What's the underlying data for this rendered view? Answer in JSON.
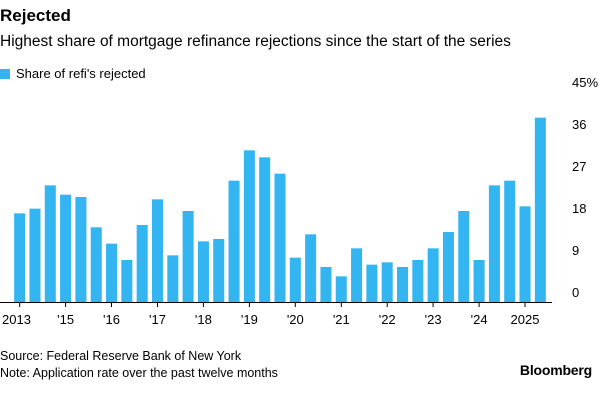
{
  "header": {
    "title": "Rejected",
    "subtitle": "Highest share of mortgage refinance rejections since the start of the series"
  },
  "footer": {
    "source": "Source: Federal Reserve Bank of New York",
    "note": "Note: Application rate over the past twelve months",
    "brand": "Bloomberg"
  },
  "colors": {
    "bar": "#33b5f2",
    "axis": "#000000",
    "text": "#000000"
  },
  "chart_data": {
    "type": "bar",
    "title": "Rejected",
    "subtitle": "Highest share of mortgage refinance rejections since the start of the series",
    "series": [
      {
        "name": "Share of refi's rejected",
        "values": [
          19,
          20,
          25,
          23,
          22.5,
          16,
          12.5,
          9,
          16.5,
          22,
          10,
          19.5,
          13,
          13.5,
          26,
          32.5,
          31,
          27.5,
          9.5,
          14.5,
          7.5,
          5.5,
          11.5,
          8,
          8.5,
          7.5,
          9,
          11.5,
          15,
          19.5,
          9,
          25,
          26,
          20.5,
          39.5
        ]
      }
    ],
    "x_tick_labels": [
      "2013",
      "'15",
      "'16",
      "'17",
      "'18",
      "'19",
      "'20",
      "'21",
      "'22",
      "'23",
      "'24",
      "2025"
    ],
    "y_ticks": [
      "45%",
      "36",
      "27",
      "18",
      "9",
      "0"
    ],
    "ylim": [
      0,
      45
    ],
    "legend_position": "top-left",
    "y_axis_side": "right",
    "grid": false
  }
}
